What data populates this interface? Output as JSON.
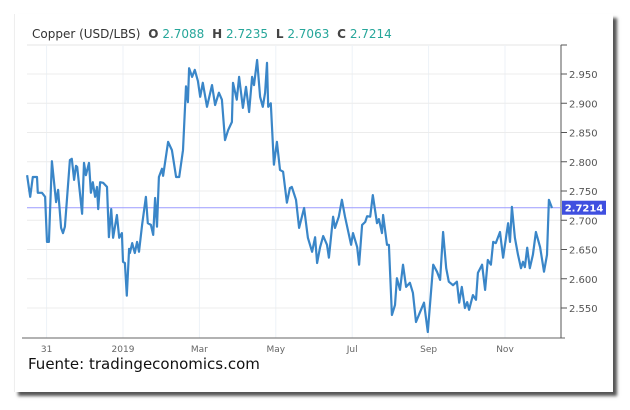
{
  "chart_data": {
    "type": "line",
    "title": "Copper (USD/LBS)",
    "ohlc": {
      "o_label": "O",
      "o": "2.7088",
      "h_label": "H",
      "h": "2.7235",
      "l_label": "L",
      "l": "2.7063",
      "c_label": "C",
      "c": "2.7214"
    },
    "xlabel": "",
    "ylabel": "",
    "x_unit": "months from 2019-01-01",
    "x_ticks": [
      {
        "label": "31",
        "x": -2
      },
      {
        "label": "2019",
        "x": 0
      },
      {
        "label": "Mar",
        "x": 2
      },
      {
        "label": "May",
        "x": 4
      },
      {
        "label": "Jul",
        "x": 6
      },
      {
        "label": "Sep",
        "x": 8
      },
      {
        "label": "Nov",
        "x": 10
      }
    ],
    "y_ticks": [
      "2.550",
      "2.600",
      "2.650",
      "2.700",
      "2.750",
      "2.800",
      "2.850",
      "2.900",
      "2.950"
    ],
    "ylim": [
      2.49,
      3.0
    ],
    "xlim": [
      -2.51,
      11.23
    ],
    "grid": true,
    "last_price": "2.7214",
    "last_value": 2.7214,
    "colors": {
      "line": "#3a86c8",
      "last_price_bg": "#3f4fe0",
      "last_price_line": "#9c9cff",
      "ohlc": "#26a69a"
    },
    "series": [
      {
        "name": "Copper",
        "x": [
          -2.51,
          -2.43,
          -2.36,
          -2.25,
          -2.23,
          -2.12,
          -2.04,
          -1.99,
          -1.94,
          -1.86,
          -1.75,
          -1.7,
          -1.62,
          -1.57,
          -1.52,
          -1.39,
          -1.34,
          -1.28,
          -1.23,
          -1.2,
          -1.07,
          -1.02,
          -0.97,
          -0.89,
          -0.84,
          -0.79,
          -0.73,
          -0.68,
          -0.65,
          -0.6,
          -0.52,
          -0.42,
          -0.37,
          -0.31,
          -0.26,
          -0.16,
          -0.1,
          -0.03,
          0.0,
          0.05,
          0.1,
          0.16,
          0.18,
          0.24,
          0.31,
          0.37,
          0.42,
          0.5,
          0.6,
          0.65,
          0.73,
          0.79,
          0.84,
          0.89,
          0.94,
          1.02,
          1.05,
          1.18,
          1.28,
          1.39,
          1.47,
          1.57,
          1.65,
          1.7,
          1.73,
          1.81,
          1.88,
          1.96,
          2.02,
          2.09,
          2.2,
          2.33,
          2.41,
          2.51,
          2.59,
          2.67,
          2.75,
          2.85,
          2.88,
          2.98,
          3.04,
          3.14,
          3.22,
          3.3,
          3.38,
          3.43,
          3.51,
          3.59,
          3.66,
          3.72,
          3.77,
          3.8,
          3.87,
          3.95,
          4.03,
          4.11,
          4.19,
          4.29,
          4.37,
          4.42,
          4.53,
          4.61,
          4.74,
          4.84,
          4.95,
          5.03,
          5.08,
          5.16,
          5.24,
          5.34,
          5.39,
          5.5,
          5.55,
          5.65,
          5.73,
          5.81,
          5.97,
          6.02,
          6.13,
          6.18,
          6.26,
          6.34,
          6.39,
          6.47,
          6.54,
          6.65,
          6.7,
          6.78,
          6.81,
          6.91,
          6.96,
          7.04,
          7.12,
          7.17,
          7.25,
          7.33,
          7.41,
          7.51,
          7.59,
          7.67,
          7.77,
          7.88,
          7.98,
          8.12,
          8.22,
          8.3,
          8.38,
          8.46,
          8.53,
          8.64,
          8.74,
          8.8,
          8.87,
          8.95,
          9.01,
          9.06,
          9.16,
          9.24,
          9.29,
          9.4,
          9.48,
          9.55,
          9.63,
          9.69,
          9.76,
          9.87,
          9.95,
          10.08,
          10.13,
          10.18,
          10.26,
          10.34,
          10.42,
          10.47,
          10.52,
          10.58,
          10.65,
          10.73,
          10.81,
          10.92,
          11.02,
          11.1,
          11.15,
          11.23
        ],
        "y": [
          2.777,
          2.74,
          2.774,
          2.774,
          2.747,
          2.747,
          2.74,
          2.663,
          2.663,
          2.801,
          2.731,
          2.752,
          2.687,
          2.678,
          2.689,
          2.803,
          2.805,
          2.769,
          2.793,
          2.791,
          2.711,
          2.798,
          2.777,
          2.798,
          2.747,
          2.765,
          2.74,
          2.757,
          2.719,
          2.765,
          2.764,
          2.757,
          2.671,
          2.719,
          2.67,
          2.709,
          2.67,
          2.678,
          2.629,
          2.627,
          2.571,
          2.651,
          2.644,
          2.661,
          2.644,
          2.663,
          2.646,
          2.692,
          2.74,
          2.695,
          2.692,
          2.675,
          2.738,
          2.689,
          2.774,
          2.788,
          2.776,
          2.834,
          2.82,
          2.774,
          2.774,
          2.82,
          2.929,
          2.902,
          2.96,
          2.945,
          2.957,
          2.938,
          2.911,
          2.935,
          2.894,
          2.931,
          2.897,
          2.918,
          2.906,
          2.837,
          2.854,
          2.868,
          2.935,
          2.906,
          2.945,
          2.892,
          2.928,
          2.885,
          2.945,
          2.931,
          2.974,
          2.911,
          2.894,
          2.918,
          2.969,
          2.894,
          2.9,
          2.795,
          2.834,
          2.786,
          2.783,
          2.73,
          2.755,
          2.757,
          2.735,
          2.687,
          2.721,
          2.67,
          2.646,
          2.671,
          2.627,
          2.654,
          2.673,
          2.658,
          2.636,
          2.706,
          2.687,
          2.706,
          2.735,
          2.707,
          2.658,
          2.678,
          2.654,
          2.624,
          2.692,
          2.697,
          2.707,
          2.706,
          2.743,
          2.695,
          2.702,
          2.678,
          2.709,
          2.658,
          2.658,
          2.538,
          2.555,
          2.601,
          2.581,
          2.624,
          2.586,
          2.593,
          2.576,
          2.526,
          2.542,
          2.559,
          2.509,
          2.624,
          2.612,
          2.598,
          2.68,
          2.618,
          2.595,
          2.589,
          2.595,
          2.559,
          2.586,
          2.55,
          2.56,
          2.547,
          2.572,
          2.564,
          2.61,
          2.624,
          2.581,
          2.632,
          2.624,
          2.663,
          2.661,
          2.68,
          2.636,
          2.695,
          2.663,
          2.723,
          2.67,
          2.641,
          2.618,
          2.629,
          2.62,
          2.653,
          2.618,
          2.641,
          2.68,
          2.654,
          2.612,
          2.641,
          2.735,
          2.721
        ]
      }
    ]
  },
  "source": "Fuente: tradingeconomics.com"
}
